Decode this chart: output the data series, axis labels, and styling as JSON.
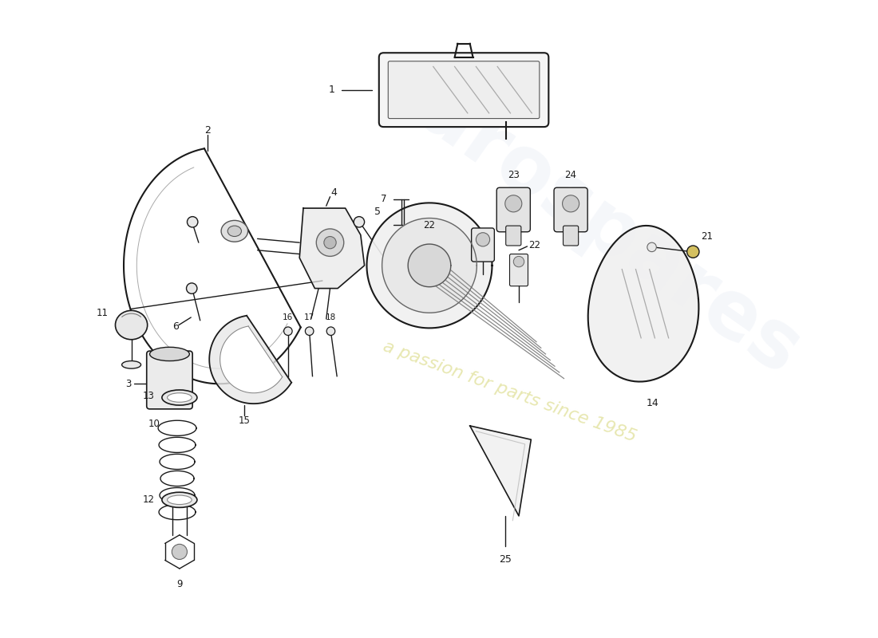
{
  "bg_color": "#ffffff",
  "line_color": "#1a1a1a",
  "fig_w": 11.0,
  "fig_h": 8.0,
  "dpi": 100
}
